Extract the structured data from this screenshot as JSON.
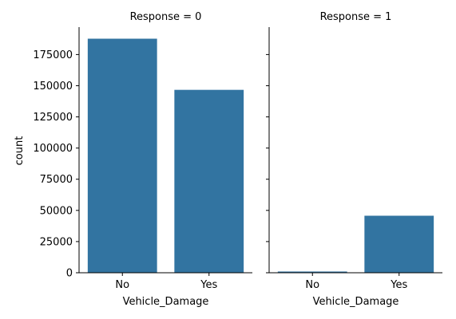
{
  "chart_data": [
    {
      "type": "bar",
      "title": "Response = 0",
      "xlabel": "Vehicle_Damage",
      "ylabel": "count",
      "categories": [
        "No",
        "Yes"
      ],
      "values": [
        187714,
        146685
      ],
      "ylim": [
        0,
        197000
      ],
      "yticks": [
        0,
        25000,
        50000,
        75000,
        100000,
        125000,
        150000,
        175000
      ],
      "grid": false
    },
    {
      "type": "bar",
      "title": "Response = 1",
      "xlabel": "Vehicle_Damage",
      "ylabel": "",
      "categories": [
        "No",
        "Yes"
      ],
      "values": [
        982,
        45728
      ],
      "ylim": [
        0,
        197000
      ],
      "yticks": [
        0,
        25000,
        50000,
        75000,
        100000,
        125000,
        150000,
        175000
      ],
      "grid": false
    }
  ],
  "colors": {
    "bar": "#3274a1",
    "axis": "#000000"
  }
}
